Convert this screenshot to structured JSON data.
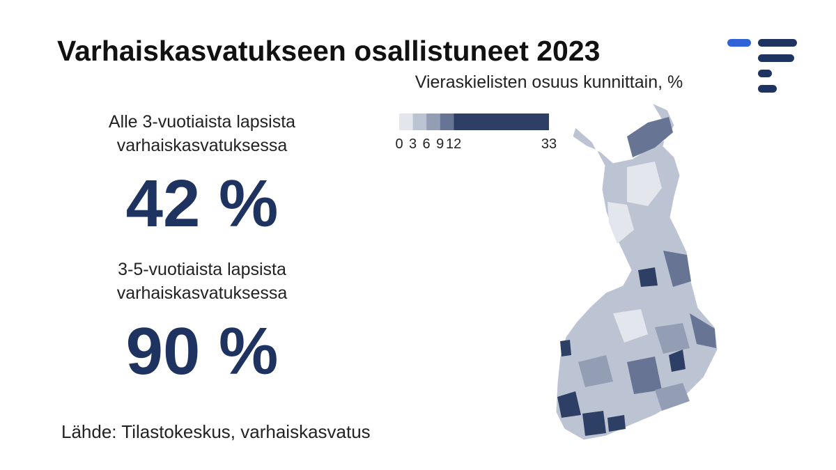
{
  "title": "Varhaiskasvatukseen osallistuneet 2023",
  "stats": [
    {
      "label_lines": [
        "Alle 3-vuotiaista lapsista",
        "varhaiskasvatuksessa"
      ],
      "value": "42 %"
    },
    {
      "label_lines": [
        "3-5-vuotiaista lapsista",
        "varhaiskasvatuksessa"
      ],
      "value": "90 %"
    }
  ],
  "map": {
    "title": "Vieraskielisten osuus kunnittain, %",
    "legend": {
      "breaks": [
        0,
        3,
        6,
        9,
        12,
        33
      ],
      "colors": [
        "#e3e6ec",
        "#bcc3d2",
        "#939db4",
        "#677494",
        "#2e3f66"
      ]
    }
  },
  "source": "Lähde: Tilastokeskus, varhaiskasvatus"
}
